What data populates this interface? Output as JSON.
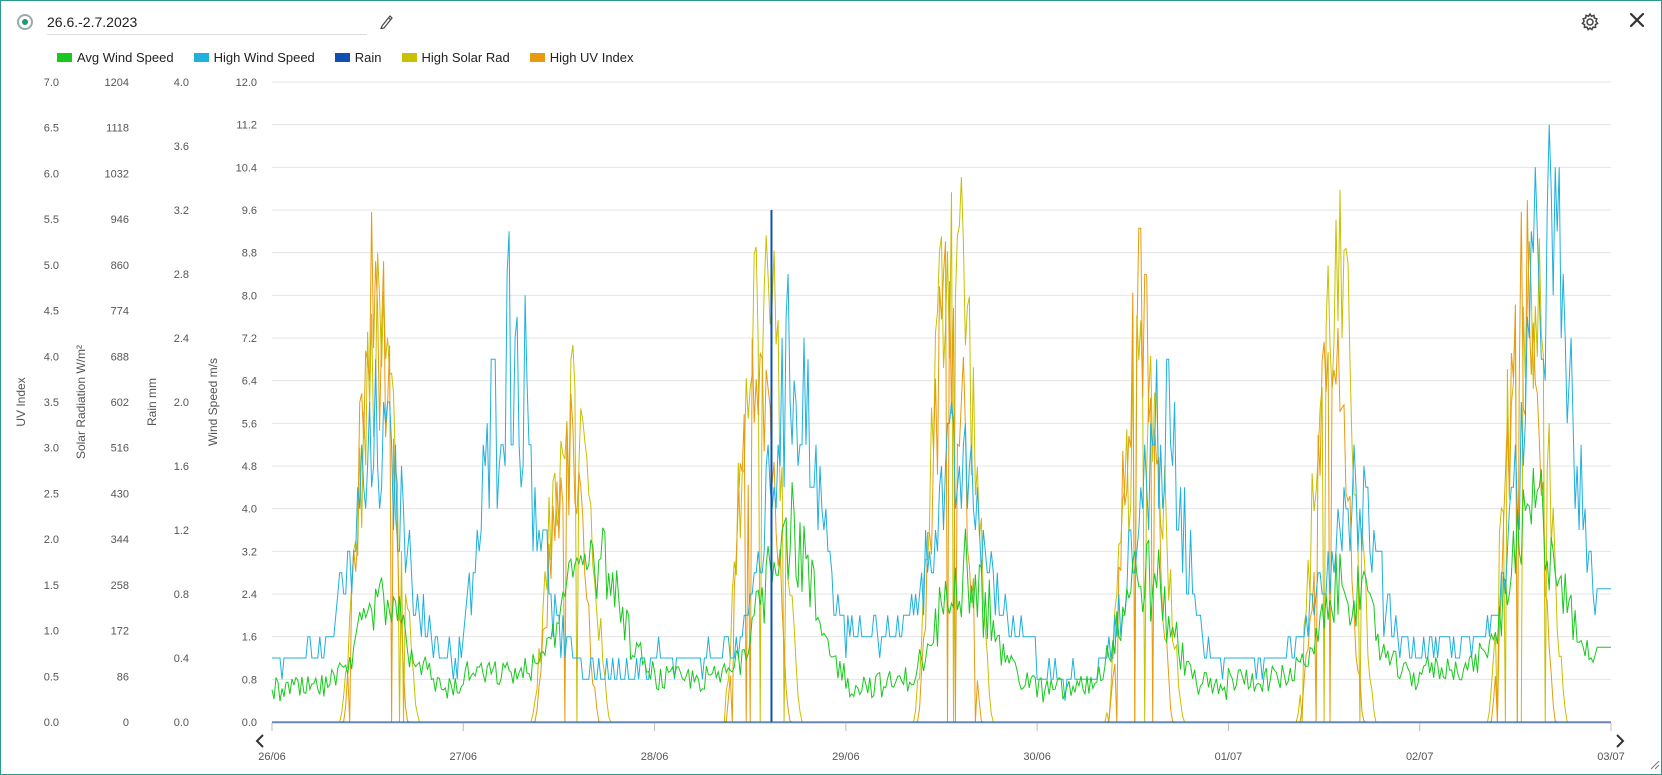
{
  "header": {
    "title": "26.6.-2.7.2023"
  },
  "icons": {
    "radio": "radio-selected-icon",
    "edit": "pencil-icon",
    "settings": "gear-icon",
    "close": "close-icon",
    "prev": "chevron-left-icon",
    "next": "chevron-right-icon",
    "resize": "resize-handle-icon"
  },
  "chart_data": {
    "type": "line",
    "grid": true,
    "legend_position": "top-left",
    "x_ticks": [
      "26/06",
      "27/06",
      "28/06",
      "29/06",
      "30/06",
      "01/07",
      "02/07",
      "03/07"
    ],
    "x_range": [
      "2023-06-26 00:00",
      "2023-07-03 00:00"
    ],
    "axes": [
      {
        "id": "uv",
        "title": "UV Index",
        "min": 0,
        "max": 7,
        "ticks": [
          "0.0",
          "0.5",
          "1.0",
          "1.5",
          "2.0",
          "2.5",
          "3.0",
          "3.5",
          "4.0",
          "4.5",
          "5.0",
          "5.5",
          "6.0",
          "6.5",
          "7.0"
        ]
      },
      {
        "id": "solar",
        "title": "Solar Radiation W/m²",
        "min": 0,
        "max": 1204,
        "ticks": [
          "0",
          "86",
          "172",
          "258",
          "344",
          "430",
          "516",
          "602",
          "688",
          "774",
          "860",
          "946",
          "1032",
          "1118",
          "1204"
        ]
      },
      {
        "id": "rain",
        "title": "Rain mm",
        "min": 0,
        "max": 4,
        "ticks": [
          "0.0",
          "0.4",
          "0.8",
          "1.2",
          "1.6",
          "2.0",
          "2.4",
          "2.8",
          "3.2",
          "3.6",
          "4.0"
        ]
      },
      {
        "id": "wind",
        "title": "Wind Speed m/s",
        "min": 0,
        "max": 12,
        "ticks": [
          "0.0",
          "0.8",
          "1.6",
          "2.4",
          "3.2",
          "4.0",
          "4.8",
          "5.6",
          "6.4",
          "7.2",
          "8.0",
          "8.8",
          "9.6",
          "10.4",
          "11.2",
          "12.0"
        ]
      }
    ],
    "series": [
      {
        "name": "Avg Wind Speed",
        "axis": "wind",
        "color": "#19c81e",
        "daily_peak_time": [
          "14:00",
          "16:00",
          "16:30",
          "15:00",
          "13:30",
          "15:00",
          "14:30"
        ],
        "daily_peak": [
          2.8,
          4.3,
          4.8,
          3.8,
          3.6,
          3.3,
          5.0
        ],
        "night_level": [
          0.6,
          0.9,
          0.8,
          0.7,
          0.6,
          0.8,
          1.0
        ],
        "end_value": 1.4
      },
      {
        "name": "High Wind Speed",
        "axis": "wind",
        "color": "#1fb0dc",
        "daily_peak_time": [
          "13:30",
          "06:00",
          "17:30",
          "14:00",
          "15:30",
          "15:30",
          "16:00"
        ],
        "daily_peak": [
          6.7,
          9.4,
          8.6,
          6.0,
          7.2,
          5.5,
          11.6
        ],
        "night_level": [
          1.2,
          1.0,
          1.2,
          1.6,
          0.8,
          1.2,
          1.4
        ],
        "end_value": 2.5
      },
      {
        "name": "Rain",
        "axis": "rain",
        "color": "#1050b0",
        "events": [
          {
            "time": "2023-06-28 14:40",
            "value": 3.2
          }
        ],
        "base_value": 0.0
      },
      {
        "name": "High Solar Rad",
        "axis": "solar",
        "color": "#c8c000",
        "daily_peak_time": [
          "13:30",
          "13:30",
          "13:30",
          "13:30",
          "13:30",
          "13:30",
          "13:30"
        ],
        "daily_peak": [
          898,
          785,
          1078,
          1204,
          850,
          1036,
          1118
        ]
      },
      {
        "name": "High UV Index",
        "axis": "uv",
        "color": "#e89a10",
        "daily_peak_time": [
          "13:00",
          "13:00",
          "13:00",
          "13:00",
          "13:00",
          "13:00",
          "13:00"
        ],
        "daily_peak": [
          5.9,
          3.8,
          5.6,
          6.1,
          5.6,
          4.7,
          6.1
        ]
      }
    ]
  }
}
